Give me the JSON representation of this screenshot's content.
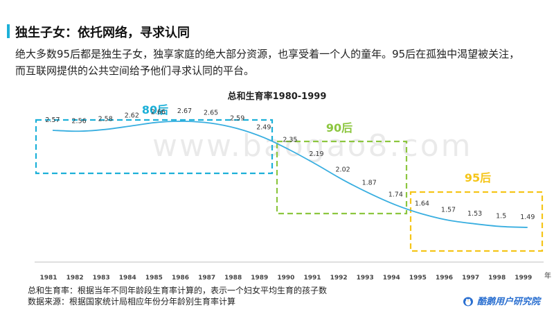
{
  "header": {
    "title": "独生子女：依托网络，寻求认同",
    "subtitle": "绝大多数95后都是独生子女，独享家庭的绝大部分资源，也享受着一个人的童年。95后在孤独中渴望被关注，而互联网提供的公共空间给予他们寻求认同的平台。"
  },
  "watermark": "www.baogao8.com",
  "chart_data": {
    "type": "line",
    "title": "总和生育率1980-1999",
    "x_unit": "年",
    "categories": [
      "1981",
      "1982",
      "1983",
      "1984",
      "1985",
      "1986",
      "1987",
      "1988",
      "1989",
      "1990",
      "1991",
      "1992",
      "1993",
      "1994",
      "1995",
      "1996",
      "1997",
      "1998",
      "1999"
    ],
    "values": [
      2.57,
      2.56,
      2.58,
      2.62,
      2.66,
      2.67,
      2.65,
      2.59,
      2.49,
      2.35,
      2.19,
      2.02,
      1.87,
      1.74,
      1.64,
      1.57,
      1.53,
      1.5,
      1.49
    ],
    "line_color": "#38aee0",
    "groups": [
      {
        "label": "80后",
        "start": "1981",
        "end": "1989",
        "color": "#1cb0d8"
      },
      {
        "label": "90后",
        "start": "1990",
        "end": "1994",
        "color": "#8cc63f"
      },
      {
        "label": "95后",
        "start": "1995",
        "end": "1999",
        "color": "#f5c518"
      }
    ]
  },
  "footer": {
    "note1": "总和生育率：根据当年不同年龄段生育率计算的，表示一个妇女平均生育的孩子数",
    "note2": "数据来源：根据国家统计局相应年份分年龄别生育率计算",
    "brand": "酷鹅用户研究院",
    "brand_icon": "penguin-logo-icon"
  }
}
